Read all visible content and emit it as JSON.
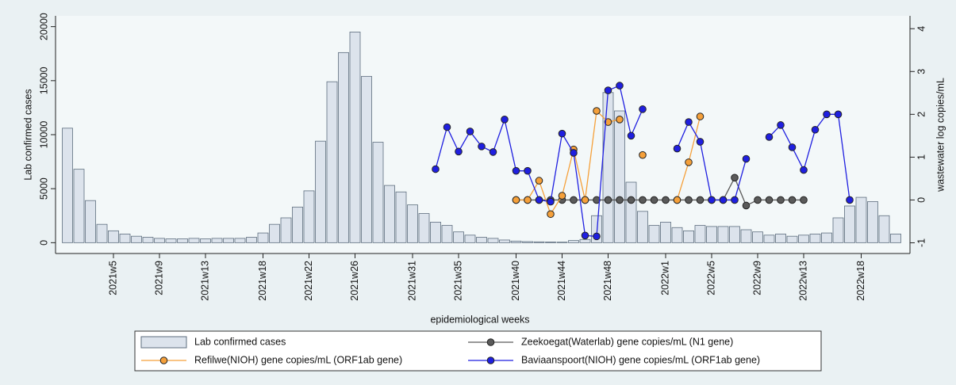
{
  "chart_data": {
    "type": "bar",
    "x_label": "epidemiological weeks",
    "y_label": "Lab  confirmed cases",
    "y2_label": "wastewater log copies/mL",
    "categories": [
      null,
      null,
      null,
      null,
      "2021w5",
      null,
      null,
      null,
      "2021w9",
      null,
      null,
      null,
      "2021w13",
      null,
      null,
      null,
      null,
      "2021w18",
      null,
      null,
      null,
      "2021w22",
      null,
      null,
      null,
      "2021w26",
      null,
      null,
      null,
      null,
      "2021w31",
      null,
      null,
      null,
      "2021w35",
      null,
      null,
      null,
      null,
      "2021w40",
      null,
      null,
      null,
      "2021w44",
      null,
      null,
      null,
      "2021w48",
      null,
      null,
      null,
      null,
      "2022w1",
      null,
      null,
      null,
      "2022w5",
      null,
      null,
      null,
      "2022w9",
      null,
      null,
      null,
      "2022w13",
      null,
      null,
      null,
      null,
      "2022w18",
      null,
      null,
      null
    ],
    "ylim": [
      -1000,
      21000
    ],
    "yticks": [
      0,
      5000,
      10000,
      15000,
      20000
    ],
    "y2lim": [
      -1.25,
      4.3
    ],
    "y2ticks": [
      -1,
      0,
      1,
      2,
      3,
      4
    ],
    "grid": false,
    "legend": "bottom",
    "series": [
      {
        "name": "Lab  confirmed cases",
        "type": "bar",
        "color": "#dce3ec",
        "values": [
          10600,
          6800,
          3900,
          1700,
          1100,
          800,
          600,
          500,
          400,
          350,
          350,
          400,
          350,
          400,
          400,
          400,
          500,
          900,
          1700,
          2300,
          3300,
          4800,
          9400,
          14900,
          17600,
          19500,
          15400,
          9300,
          5300,
          4700,
          3500,
          2700,
          1900,
          1600,
          1000,
          700,
          500,
          400,
          250,
          150,
          100,
          80,
          60,
          50,
          200,
          300,
          2500,
          13900,
          12200,
          5600,
          2900,
          1600,
          1900,
          1400,
          1100,
          1600,
          1500,
          1500,
          1500,
          1200,
          1000,
          700,
          800,
          600,
          700,
          800,
          900,
          2300,
          3400,
          4200,
          3800,
          2500,
          800
        ]
      },
      {
        "name": "Zeekoegat(Waterlab) gene copies/mL (N1 gene)",
        "type": "line",
        "axis": "y2",
        "color": "#5a5a5a",
        "values": [
          null,
          null,
          null,
          null,
          null,
          null,
          null,
          null,
          null,
          null,
          null,
          null,
          null,
          null,
          null,
          null,
          null,
          null,
          null,
          null,
          null,
          null,
          null,
          null,
          null,
          null,
          null,
          null,
          null,
          null,
          null,
          null,
          null,
          null,
          null,
          null,
          null,
          null,
          null,
          0,
          0,
          0,
          0,
          0,
          0,
          0,
          0,
          0,
          0,
          0,
          0,
          0,
          0,
          0,
          0,
          0,
          0,
          0,
          0.52,
          -0.13,
          0,
          0,
          0,
          0,
          0,
          null,
          null,
          null,
          null,
          null,
          null,
          null,
          null
        ]
      },
      {
        "name": "Refilwe(NIOH) gene copies/mL (ORF1ab gene)",
        "type": "line",
        "axis": "y2",
        "color": "#f5a03a",
        "values": [
          null,
          null,
          null,
          null,
          null,
          null,
          null,
          null,
          null,
          null,
          null,
          null,
          null,
          null,
          null,
          null,
          null,
          null,
          null,
          null,
          null,
          null,
          null,
          null,
          null,
          null,
          null,
          null,
          null,
          null,
          null,
          null,
          null,
          null,
          null,
          null,
          null,
          null,
          null,
          0,
          0,
          0.45,
          -0.33,
          0.1,
          1.18,
          0,
          2.08,
          1.82,
          1.88,
          null,
          1.05,
          null,
          null,
          0,
          0.88,
          1.95,
          null,
          null,
          null,
          null,
          null,
          null,
          null,
          null,
          null,
          null,
          null,
          null,
          null,
          null,
          null,
          null,
          null
        ]
      },
      {
        "name": "Baviaanspoort(NIOH) gene copies/mL (ORF1ab gene)",
        "type": "line",
        "axis": "y2",
        "color": "#1f1fe0",
        "values": [
          null,
          null,
          null,
          null,
          null,
          null,
          null,
          null,
          null,
          null,
          null,
          null,
          null,
          null,
          null,
          null,
          null,
          null,
          null,
          null,
          null,
          null,
          null,
          null,
          null,
          null,
          null,
          null,
          null,
          null,
          null,
          null,
          0.72,
          1.7,
          1.13,
          1.6,
          1.25,
          1.12,
          1.88,
          0.68,
          0.68,
          0,
          -0.04,
          1.55,
          1.1,
          -0.83,
          -0.85,
          2.56,
          2.67,
          1.5,
          2.12,
          null,
          null,
          1.2,
          1.82,
          1.36,
          0,
          0,
          0,
          0.96,
          null,
          1.47,
          1.75,
          1.23,
          0.7,
          1.64,
          2.0,
          2.0,
          0,
          null,
          null,
          null,
          null
        ]
      }
    ]
  }
}
